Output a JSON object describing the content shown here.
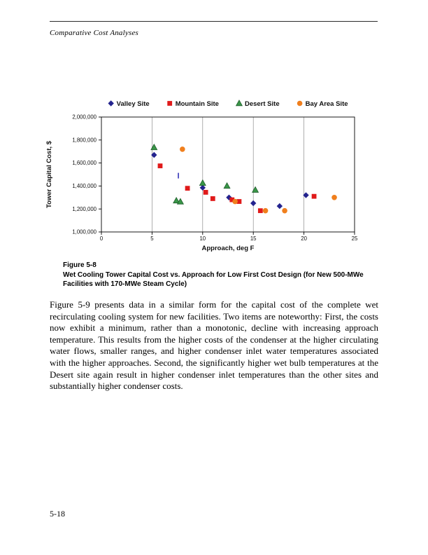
{
  "page": {
    "running_header": "Comparative Cost Analyses",
    "page_number": "5-18"
  },
  "figure": {
    "label": "Figure 5-8",
    "caption": "Wet Cooling Tower Capital Cost vs. Approach for Low First Cost Design (for New 500-MWe Facilities with 170-MWe Steam Cycle)"
  },
  "body_text": "Figure 5-9 presents data in a similar form for the capital cost of the complete wet recirculating cooling system for new facilities. Two items are noteworthy: First, the costs now exhibit a minimum, rather than a monotonic, decline with increasing approach temperature. This results from the higher costs of the condenser at the higher circulating water flows, smaller ranges, and higher condenser inlet water temperatures associated with the higher approaches. Second, the significantly higher wet bulb temperatures at the Desert site again result in higher condenser inlet temperatures than the other sites and substantially higher condenser costs.",
  "chart_data": {
    "type": "scatter",
    "xlabel": "Approach, deg F",
    "ylabel": "Tower Capital Cost, $",
    "xlim": [
      0,
      25
    ],
    "ylim": [
      1000000,
      2000000
    ],
    "x_ticks": [
      0,
      5,
      10,
      15,
      20,
      25
    ],
    "y_ticks": [
      1000000,
      1200000,
      1400000,
      1600000,
      1800000,
      2000000
    ],
    "y_tick_labels": [
      "1,000,000",
      "1,200,000",
      "1,400,000",
      "1,600,000",
      "1,800,000",
      "2,000,000"
    ],
    "grid": "vertical-only",
    "legend_position": "top",
    "series": [
      {
        "name": "Valley Site",
        "marker": "diamond",
        "color": "#23238E",
        "points": [
          [
            5.2,
            1670000
          ],
          [
            10.0,
            1385000
          ],
          [
            12.6,
            1300000
          ],
          [
            15.0,
            1250000
          ],
          [
            17.6,
            1225000
          ],
          [
            20.2,
            1320000
          ]
        ]
      },
      {
        "name": "Mountain Site",
        "marker": "square",
        "color": "#E01A1A",
        "points": [
          [
            5.8,
            1575000
          ],
          [
            8.5,
            1380000
          ],
          [
            10.3,
            1345000
          ],
          [
            11.0,
            1290000
          ],
          [
            12.9,
            1280000
          ],
          [
            13.6,
            1265000
          ],
          [
            15.7,
            1185000
          ],
          [
            21.0,
            1310000
          ]
        ]
      },
      {
        "name": "Desert Site",
        "marker": "triangle",
        "color": "#3A9648",
        "points": [
          [
            5.2,
            1735000
          ],
          [
            7.4,
            1272000
          ],
          [
            7.8,
            1263000
          ],
          [
            10.0,
            1425000
          ],
          [
            12.4,
            1400000
          ],
          [
            15.2,
            1365000
          ]
        ]
      },
      {
        "name": "Bay Area Site",
        "marker": "circle",
        "color": "#F07F1D",
        "points": [
          [
            8.0,
            1720000
          ],
          [
            13.2,
            1265000
          ],
          [
            16.2,
            1185000
          ],
          [
            18.1,
            1185000
          ],
          [
            23.0,
            1300000
          ]
        ]
      }
    ],
    "annotations": [
      {
        "type": "stray-dash",
        "x": 7.6,
        "y": 1490000,
        "color": "#3333B8"
      }
    ]
  }
}
